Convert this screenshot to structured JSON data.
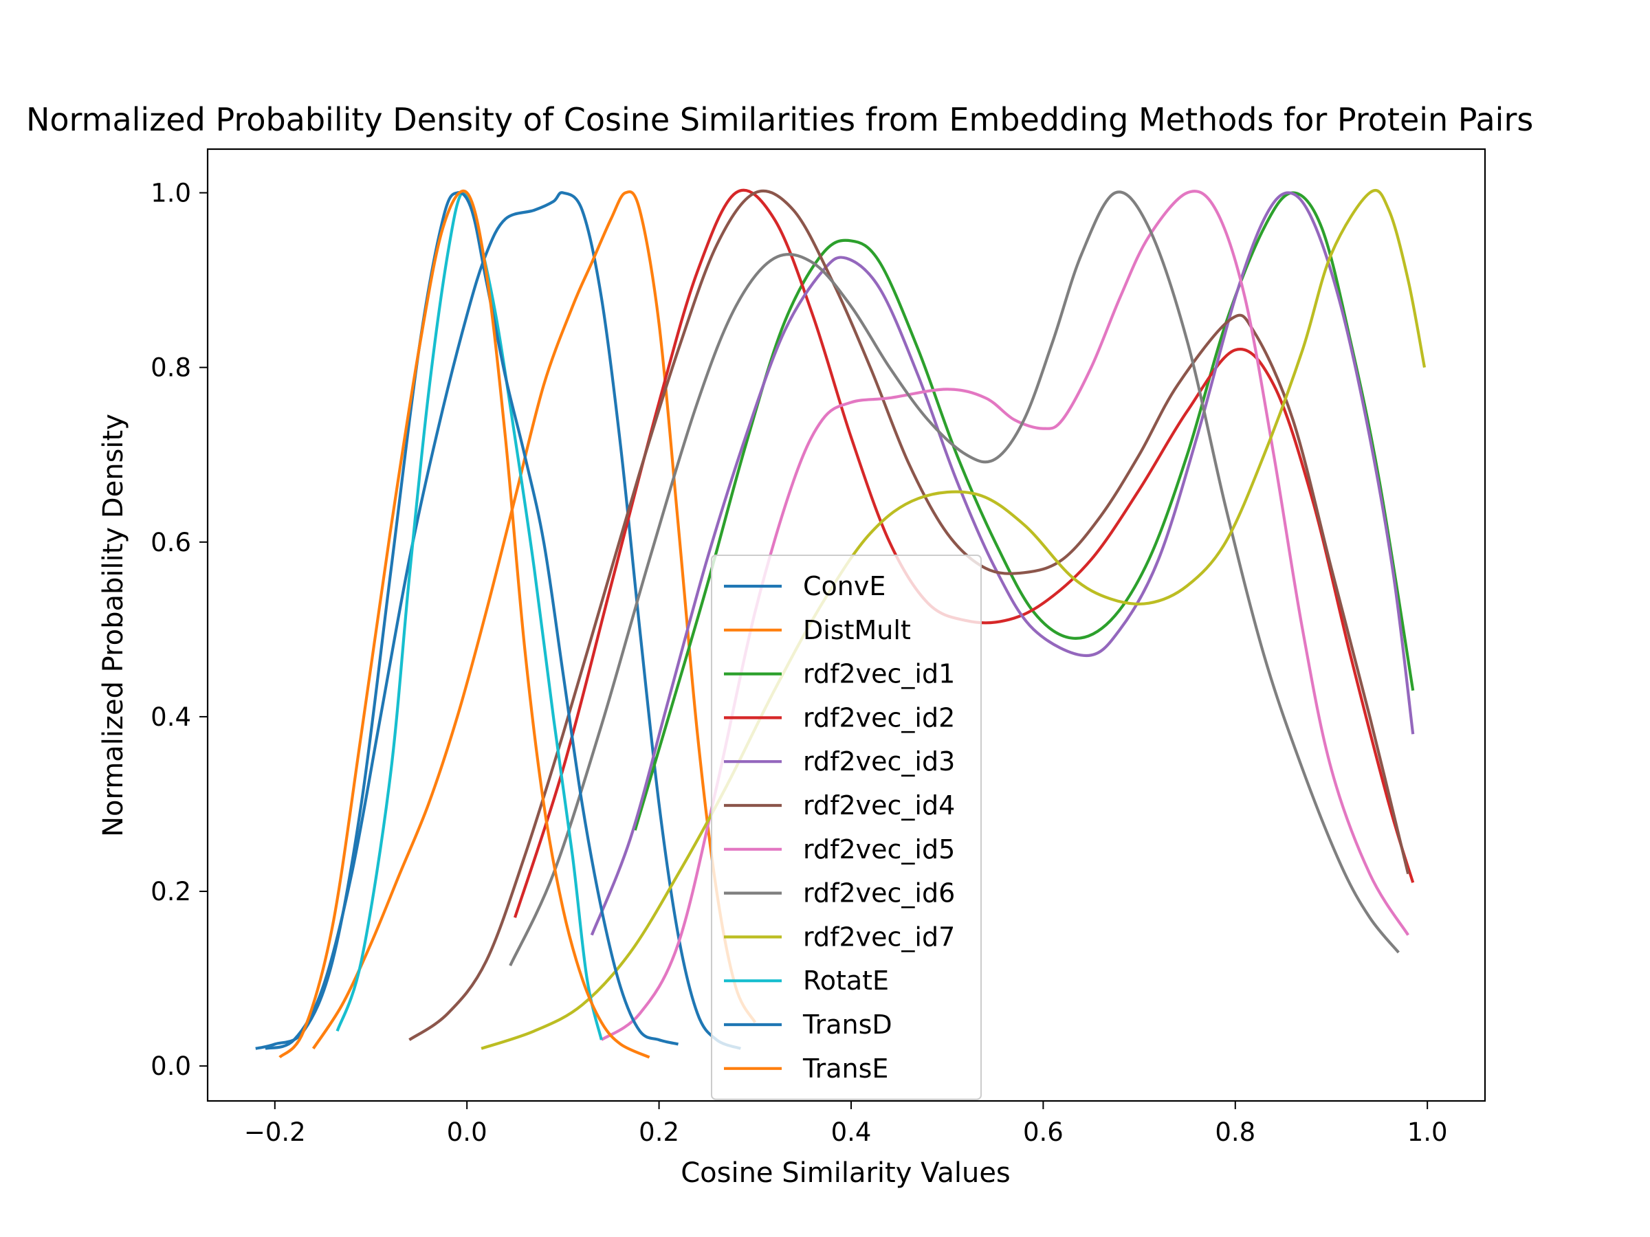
{
  "chart_data": {
    "type": "line",
    "title": "Normalized Probability Density of Cosine Similarities from Embedding Methods for Protein Pairs",
    "xlabel": "Cosine Similarity Values",
    "ylabel": "Normalized Probability Density",
    "xlim": [
      -0.27,
      1.06
    ],
    "ylim": [
      -0.04,
      1.05
    ],
    "x_ticks": [
      -0.2,
      0.0,
      0.2,
      0.4,
      0.6,
      0.8,
      1.0
    ],
    "y_ticks": [
      0.0,
      0.2,
      0.4,
      0.6,
      0.8,
      1.0
    ],
    "x_tick_labels": [
      "−0.2",
      "0.0",
      "0.2",
      "0.4",
      "0.6",
      "0.8",
      "1.0"
    ],
    "y_tick_labels": [
      "0.0",
      "0.2",
      "0.4",
      "0.6",
      "0.8",
      "1.0"
    ],
    "grid": false,
    "legend_position": "lower-center",
    "series": [
      {
        "name": "ConvE",
        "color": "#1f77b4",
        "points": [
          [
            -0.21,
            0.02
          ],
          [
            -0.18,
            0.03
          ],
          [
            -0.15,
            0.09
          ],
          [
            -0.12,
            0.22
          ],
          [
            -0.09,
            0.4
          ],
          [
            -0.06,
            0.58
          ],
          [
            -0.03,
            0.73
          ],
          [
            0.0,
            0.86
          ],
          [
            0.02,
            0.93
          ],
          [
            0.04,
            0.97
          ],
          [
            0.07,
            0.98
          ],
          [
            0.09,
            0.99
          ],
          [
            0.1,
            1.0
          ],
          [
            0.12,
            0.98
          ],
          [
            0.14,
            0.88
          ],
          [
            0.16,
            0.71
          ],
          [
            0.18,
            0.5
          ],
          [
            0.2,
            0.3
          ],
          [
            0.22,
            0.15
          ],
          [
            0.24,
            0.06
          ],
          [
            0.26,
            0.03
          ],
          [
            0.285,
            0.02
          ]
        ]
      },
      {
        "name": "DistMult",
        "color": "#ff7f0e",
        "points": [
          [
            -0.16,
            0.02
          ],
          [
            -0.13,
            0.07
          ],
          [
            -0.1,
            0.14
          ],
          [
            -0.07,
            0.22
          ],
          [
            -0.04,
            0.3
          ],
          [
            -0.01,
            0.4
          ],
          [
            0.02,
            0.52
          ],
          [
            0.05,
            0.65
          ],
          [
            0.08,
            0.78
          ],
          [
            0.11,
            0.87
          ],
          [
            0.13,
            0.92
          ],
          [
            0.15,
            0.97
          ],
          [
            0.165,
            1.0
          ],
          [
            0.18,
            0.98
          ],
          [
            0.2,
            0.85
          ],
          [
            0.22,
            0.62
          ],
          [
            0.24,
            0.38
          ],
          [
            0.26,
            0.2
          ],
          [
            0.28,
            0.09
          ],
          [
            0.3,
            0.05
          ]
        ]
      },
      {
        "name": "rdf2vec_id1",
        "color": "#2ca02c",
        "points": [
          [
            0.175,
            0.27
          ],
          [
            0.21,
            0.4
          ],
          [
            0.25,
            0.55
          ],
          [
            0.29,
            0.71
          ],
          [
            0.33,
            0.85
          ],
          [
            0.37,
            0.93
          ],
          [
            0.4,
            0.945
          ],
          [
            0.43,
            0.92
          ],
          [
            0.47,
            0.82
          ],
          [
            0.51,
            0.7
          ],
          [
            0.55,
            0.6
          ],
          [
            0.59,
            0.52
          ],
          [
            0.63,
            0.49
          ],
          [
            0.67,
            0.51
          ],
          [
            0.71,
            0.58
          ],
          [
            0.75,
            0.7
          ],
          [
            0.79,
            0.85
          ],
          [
            0.83,
            0.96
          ],
          [
            0.86,
            1.0
          ],
          [
            0.89,
            0.96
          ],
          [
            0.92,
            0.83
          ],
          [
            0.95,
            0.67
          ],
          [
            0.985,
            0.43
          ]
        ]
      },
      {
        "name": "rdf2vec_id2",
        "color": "#d62728",
        "points": [
          [
            0.05,
            0.17
          ],
          [
            0.1,
            0.34
          ],
          [
            0.15,
            0.55
          ],
          [
            0.2,
            0.76
          ],
          [
            0.24,
            0.91
          ],
          [
            0.28,
            1.0
          ],
          [
            0.32,
            0.97
          ],
          [
            0.36,
            0.86
          ],
          [
            0.4,
            0.72
          ],
          [
            0.44,
            0.6
          ],
          [
            0.48,
            0.53
          ],
          [
            0.52,
            0.51
          ],
          [
            0.56,
            0.51
          ],
          [
            0.6,
            0.53
          ],
          [
            0.65,
            0.58
          ],
          [
            0.7,
            0.66
          ],
          [
            0.75,
            0.75
          ],
          [
            0.8,
            0.82
          ],
          [
            0.84,
            0.78
          ],
          [
            0.88,
            0.65
          ],
          [
            0.92,
            0.47
          ],
          [
            0.96,
            0.3
          ],
          [
            0.985,
            0.21
          ]
        ]
      },
      {
        "name": "rdf2vec_id3",
        "color": "#9467bd",
        "points": [
          [
            0.13,
            0.15
          ],
          [
            0.17,
            0.26
          ],
          [
            0.21,
            0.42
          ],
          [
            0.25,
            0.58
          ],
          [
            0.29,
            0.72
          ],
          [
            0.33,
            0.84
          ],
          [
            0.37,
            0.91
          ],
          [
            0.395,
            0.925
          ],
          [
            0.43,
            0.89
          ],
          [
            0.47,
            0.79
          ],
          [
            0.51,
            0.67
          ],
          [
            0.55,
            0.57
          ],
          [
            0.59,
            0.5
          ],
          [
            0.645,
            0.47
          ],
          [
            0.68,
            0.5
          ],
          [
            0.72,
            0.58
          ],
          [
            0.76,
            0.72
          ],
          [
            0.8,
            0.88
          ],
          [
            0.83,
            0.97
          ],
          [
            0.855,
            1.0
          ],
          [
            0.88,
            0.97
          ],
          [
            0.91,
            0.87
          ],
          [
            0.94,
            0.72
          ],
          [
            0.965,
            0.56
          ],
          [
            0.985,
            0.38
          ]
        ]
      },
      {
        "name": "rdf2vec_id4",
        "color": "#8c564b",
        "points": [
          [
            -0.06,
            0.03
          ],
          [
            -0.02,
            0.06
          ],
          [
            0.02,
            0.12
          ],
          [
            0.06,
            0.24
          ],
          [
            0.1,
            0.38
          ],
          [
            0.14,
            0.53
          ],
          [
            0.18,
            0.68
          ],
          [
            0.22,
            0.82
          ],
          [
            0.26,
            0.94
          ],
          [
            0.3,
            1.0
          ],
          [
            0.34,
            0.98
          ],
          [
            0.38,
            0.9
          ],
          [
            0.42,
            0.8
          ],
          [
            0.46,
            0.69
          ],
          [
            0.5,
            0.61
          ],
          [
            0.54,
            0.57
          ],
          [
            0.58,
            0.565
          ],
          [
            0.62,
            0.58
          ],
          [
            0.66,
            0.63
          ],
          [
            0.7,
            0.7
          ],
          [
            0.74,
            0.78
          ],
          [
            0.795,
            0.855
          ],
          [
            0.82,
            0.84
          ],
          [
            0.86,
            0.74
          ],
          [
            0.9,
            0.57
          ],
          [
            0.94,
            0.4
          ],
          [
            0.98,
            0.22
          ]
        ]
      },
      {
        "name": "rdf2vec_id5",
        "color": "#e377c2",
        "points": [
          [
            0.14,
            0.03
          ],
          [
            0.18,
            0.06
          ],
          [
            0.22,
            0.14
          ],
          [
            0.26,
            0.32
          ],
          [
            0.3,
            0.52
          ],
          [
            0.34,
            0.67
          ],
          [
            0.37,
            0.74
          ],
          [
            0.4,
            0.76
          ],
          [
            0.44,
            0.765
          ],
          [
            0.5,
            0.775
          ],
          [
            0.54,
            0.765
          ],
          [
            0.57,
            0.74
          ],
          [
            0.6,
            0.73
          ],
          [
            0.62,
            0.74
          ],
          [
            0.65,
            0.8
          ],
          [
            0.68,
            0.88
          ],
          [
            0.71,
            0.95
          ],
          [
            0.75,
            1.0
          ],
          [
            0.78,
            0.98
          ],
          [
            0.81,
            0.88
          ],
          [
            0.84,
            0.7
          ],
          [
            0.87,
            0.5
          ],
          [
            0.9,
            0.34
          ],
          [
            0.94,
            0.22
          ],
          [
            0.98,
            0.15
          ]
        ]
      },
      {
        "name": "rdf2vec_id6",
        "color": "#7f7f7f",
        "points": [
          [
            0.045,
            0.115
          ],
          [
            0.09,
            0.22
          ],
          [
            0.14,
            0.39
          ],
          [
            0.19,
            0.58
          ],
          [
            0.24,
            0.76
          ],
          [
            0.28,
            0.87
          ],
          [
            0.32,
            0.925
          ],
          [
            0.36,
            0.92
          ],
          [
            0.4,
            0.87
          ],
          [
            0.44,
            0.8
          ],
          [
            0.48,
            0.74
          ],
          [
            0.52,
            0.7
          ],
          [
            0.55,
            0.695
          ],
          [
            0.58,
            0.74
          ],
          [
            0.61,
            0.83
          ],
          [
            0.64,
            0.93
          ],
          [
            0.675,
            1.0
          ],
          [
            0.71,
            0.96
          ],
          [
            0.75,
            0.83
          ],
          [
            0.79,
            0.64
          ],
          [
            0.83,
            0.47
          ],
          [
            0.87,
            0.34
          ],
          [
            0.91,
            0.23
          ],
          [
            0.94,
            0.17
          ],
          [
            0.97,
            0.13
          ]
        ]
      },
      {
        "name": "rdf2vec_id7",
        "color": "#bcbd22",
        "points": [
          [
            0.015,
            0.02
          ],
          [
            0.07,
            0.04
          ],
          [
            0.12,
            0.07
          ],
          [
            0.17,
            0.13
          ],
          [
            0.22,
            0.22
          ],
          [
            0.27,
            0.32
          ],
          [
            0.32,
            0.43
          ],
          [
            0.37,
            0.53
          ],
          [
            0.42,
            0.61
          ],
          [
            0.47,
            0.65
          ],
          [
            0.53,
            0.655
          ],
          [
            0.58,
            0.62
          ],
          [
            0.63,
            0.56
          ],
          [
            0.67,
            0.535
          ],
          [
            0.71,
            0.53
          ],
          [
            0.75,
            0.55
          ],
          [
            0.79,
            0.6
          ],
          [
            0.83,
            0.7
          ],
          [
            0.87,
            0.82
          ],
          [
            0.9,
            0.93
          ],
          [
            0.94,
            1.0
          ],
          [
            0.96,
            0.98
          ],
          [
            0.98,
            0.9
          ],
          [
            0.997,
            0.8
          ]
        ]
      },
      {
        "name": "RotatE",
        "color": "#17becf",
        "points": [
          [
            -0.135,
            0.04
          ],
          [
            -0.11,
            0.12
          ],
          [
            -0.08,
            0.33
          ],
          [
            -0.06,
            0.56
          ],
          [
            -0.04,
            0.77
          ],
          [
            -0.02,
            0.93
          ],
          [
            -0.005,
            1.0
          ],
          [
            0.01,
            0.96
          ],
          [
            0.03,
            0.86
          ],
          [
            0.05,
            0.72
          ],
          [
            0.07,
            0.57
          ],
          [
            0.09,
            0.4
          ],
          [
            0.11,
            0.24
          ],
          [
            0.125,
            0.1
          ],
          [
            0.14,
            0.03
          ]
        ]
      },
      {
        "name": "TransD",
        "color": "#1f77b4",
        "points": [
          [
            -0.22,
            0.02
          ],
          [
            -0.2,
            0.025
          ],
          [
            -0.17,
            0.04
          ],
          [
            -0.14,
            0.12
          ],
          [
            -0.11,
            0.3
          ],
          [
            -0.08,
            0.56
          ],
          [
            -0.05,
            0.82
          ],
          [
            -0.025,
            0.97
          ],
          [
            -0.01,
            1.0
          ],
          [
            0.005,
            0.98
          ],
          [
            0.02,
            0.9
          ],
          [
            0.04,
            0.79
          ],
          [
            0.06,
            0.7
          ],
          [
            0.08,
            0.6
          ],
          [
            0.1,
            0.45
          ],
          [
            0.12,
            0.3
          ],
          [
            0.14,
            0.18
          ],
          [
            0.16,
            0.09
          ],
          [
            0.18,
            0.04
          ],
          [
            0.2,
            0.03
          ],
          [
            0.22,
            0.025
          ]
        ]
      },
      {
        "name": "TransE",
        "color": "#ff7f0e",
        "points": [
          [
            -0.195,
            0.01
          ],
          [
            -0.17,
            0.04
          ],
          [
            -0.14,
            0.16
          ],
          [
            -0.11,
            0.38
          ],
          [
            -0.08,
            0.61
          ],
          [
            -0.05,
            0.82
          ],
          [
            -0.025,
            0.96
          ],
          [
            0.0,
            1.0
          ],
          [
            0.02,
            0.91
          ],
          [
            0.04,
            0.72
          ],
          [
            0.06,
            0.48
          ],
          [
            0.08,
            0.3
          ],
          [
            0.1,
            0.18
          ],
          [
            0.12,
            0.1
          ],
          [
            0.14,
            0.05
          ],
          [
            0.16,
            0.025
          ],
          [
            0.19,
            0.01
          ]
        ]
      }
    ]
  }
}
